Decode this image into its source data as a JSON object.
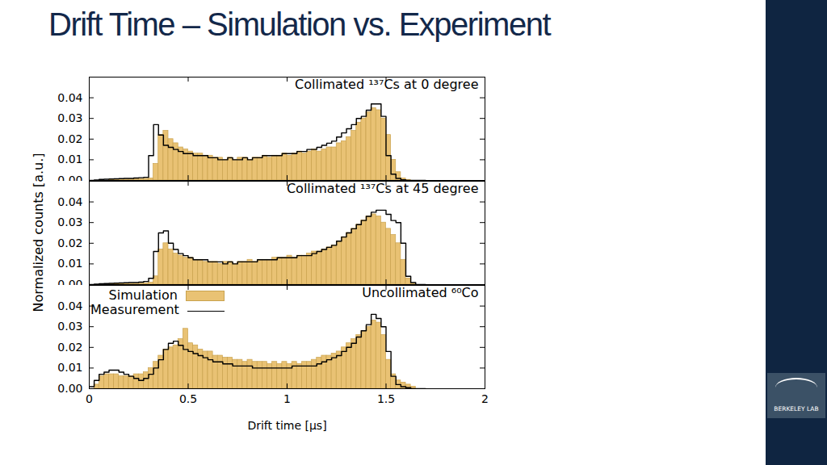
{
  "title": "Drift Time – Simulation vs. Experiment",
  "logo": "BERKELEY LAB",
  "chart_data": [
    {
      "type": "histogram",
      "title": "Collimated ¹³⁷Cs at 0 degree",
      "xlim": [
        0,
        2
      ],
      "xticks": [
        0,
        0.5,
        1,
        1.5,
        2
      ],
      "ylim": [
        0,
        0.05
      ],
      "yticks": [
        {
          "value": 0,
          "label": "0.00"
        },
        {
          "value": 0.01,
          "label": "0.01"
        },
        {
          "value": 0.02,
          "label": "0.02"
        },
        {
          "value": 0.03,
          "label": "0.03"
        },
        {
          "value": 0.04,
          "label": "0.04"
        }
      ],
      "tick_labels": "y",
      "bins": [
        0,
        0.025,
        0.05,
        0.075,
        0.1,
        0.125,
        0.15,
        0.175,
        0.2,
        0.225,
        0.25,
        0.275,
        0.3,
        0.325,
        0.35,
        0.375,
        0.4,
        0.425,
        0.45,
        0.475,
        0.5,
        0.525,
        0.55,
        0.575,
        0.6,
        0.625,
        0.65,
        0.675,
        0.7,
        0.725,
        0.75,
        0.775,
        0.8,
        0.825,
        0.85,
        0.875,
        0.9,
        0.925,
        0.95,
        0.975,
        1,
        1.025,
        1.05,
        1.075,
        1.1,
        1.125,
        1.15,
        1.175,
        1.2,
        1.225,
        1.25,
        1.275,
        1.3,
        1.325,
        1.35,
        1.375,
        1.4,
        1.425,
        1.45,
        1.475,
        1.5,
        1.525,
        1.55,
        1.575,
        1.6,
        1.625,
        1.65,
        1.675,
        1.7
      ],
      "series": [
        {
          "name": "Simulation",
          "type": "bar",
          "color": "#e9c274",
          "values": [
            0,
            0,
            0,
            0,
            0.0003,
            0.0004,
            0.0005,
            0.0005,
            0.0006,
            0.0006,
            0.0007,
            0.0008,
            0.001,
            0.008,
            0.022,
            0.024,
            0.02,
            0.018,
            0.016,
            0.015,
            0.014,
            0.013,
            0.013,
            0.012,
            0.012,
            0.011,
            0.011,
            0.01,
            0.011,
            0.01,
            0.011,
            0.011,
            0.01,
            0.011,
            0.011,
            0.012,
            0.011,
            0.012,
            0.012,
            0.013,
            0.012,
            0.013,
            0.014,
            0.013,
            0.014,
            0.015,
            0.014,
            0.015,
            0.016,
            0.016,
            0.018,
            0.019,
            0.021,
            0.024,
            0.028,
            0.03,
            0.033,
            0.035,
            0.034,
            0.03,
            0.022,
            0.01,
            0.004,
            0.001,
            0.0003,
            0,
            0,
            0
          ]
        },
        {
          "name": "Measurement",
          "type": "line",
          "color": "#000000",
          "values": [
            0,
            0.0002,
            0.0005,
            0.0006,
            0.0007,
            0.0008,
            0.0009,
            0.001,
            0.001,
            0.0012,
            0.0013,
            0.0015,
            0.012,
            0.027,
            0.022,
            0.017,
            0.016,
            0.015,
            0.014,
            0.013,
            0.013,
            0.012,
            0.012,
            0.012,
            0.011,
            0.011,
            0.01,
            0.01,
            0.011,
            0.01,
            0.01,
            0.011,
            0.01,
            0.011,
            0.011,
            0.012,
            0.012,
            0.012,
            0.012,
            0.013,
            0.013,
            0.013,
            0.014,
            0.014,
            0.015,
            0.015,
            0.016,
            0.017,
            0.018,
            0.019,
            0.021,
            0.023,
            0.025,
            0.027,
            0.03,
            0.031,
            0.034,
            0.037,
            0.037,
            0.031,
            0.012,
            0.003,
            0.001,
            0.0003,
            0,
            0,
            0,
            0
          ]
        }
      ]
    },
    {
      "type": "histogram",
      "title": "Collimated ¹³⁷Cs at 45 degree",
      "ylabel": "Normalized counts [a.u.]",
      "xlim": [
        0,
        2
      ],
      "xticks": [
        0,
        0.5,
        1,
        1.5,
        2
      ],
      "ylim": [
        0,
        0.05
      ],
      "yticks": [
        {
          "value": 0,
          "label": "0.00"
        },
        {
          "value": 0.01,
          "label": "0.01"
        },
        {
          "value": 0.02,
          "label": "0.02"
        },
        {
          "value": 0.03,
          "label": "0.03"
        },
        {
          "value": 0.04,
          "label": "0.04"
        }
      ],
      "tick_labels": "y",
      "bins": [
        0,
        0.025,
        0.05,
        0.075,
        0.1,
        0.125,
        0.15,
        0.175,
        0.2,
        0.225,
        0.25,
        0.275,
        0.3,
        0.325,
        0.35,
        0.375,
        0.4,
        0.425,
        0.45,
        0.475,
        0.5,
        0.525,
        0.55,
        0.575,
        0.6,
        0.625,
        0.65,
        0.675,
        0.7,
        0.725,
        0.75,
        0.775,
        0.8,
        0.825,
        0.85,
        0.875,
        0.9,
        0.925,
        0.95,
        0.975,
        1,
        1.025,
        1.05,
        1.075,
        1.1,
        1.125,
        1.15,
        1.175,
        1.2,
        1.225,
        1.25,
        1.275,
        1.3,
        1.325,
        1.35,
        1.375,
        1.4,
        1.425,
        1.45,
        1.475,
        1.5,
        1.525,
        1.55,
        1.575,
        1.6,
        1.625,
        1.65,
        1.675,
        1.7
      ],
      "series": [
        {
          "name": "Simulation",
          "type": "bar",
          "color": "#e9c274",
          "values": [
            0,
            0,
            0,
            0,
            0.0002,
            0.0003,
            0.0003,
            0.0004,
            0.0004,
            0.0005,
            0.0005,
            0.0006,
            0.001,
            0.004,
            0.017,
            0.02,
            0.017,
            0.015,
            0.014,
            0.013,
            0.013,
            0.012,
            0.012,
            0.011,
            0.011,
            0.011,
            0.01,
            0.011,
            0.011,
            0.01,
            0.011,
            0.011,
            0.012,
            0.011,
            0.012,
            0.012,
            0.012,
            0.013,
            0.013,
            0.013,
            0.014,
            0.013,
            0.014,
            0.014,
            0.015,
            0.016,
            0.016,
            0.017,
            0.018,
            0.019,
            0.021,
            0.023,
            0.025,
            0.027,
            0.029,
            0.031,
            0.033,
            0.034,
            0.033,
            0.03,
            0.027,
            0.024,
            0.02,
            0.012,
            0.003,
            0.0005,
            0,
            0
          ]
        },
        {
          "name": "Measurement",
          "type": "line",
          "color": "#000000",
          "values": [
            0,
            0.0002,
            0.0004,
            0.0005,
            0.0006,
            0.0007,
            0.0008,
            0.0009,
            0.001,
            0.001,
            0.0012,
            0.0015,
            0.003,
            0.016,
            0.025,
            0.026,
            0.02,
            0.017,
            0.015,
            0.014,
            0.013,
            0.012,
            0.012,
            0.012,
            0.011,
            0.011,
            0.011,
            0.01,
            0.011,
            0.01,
            0.011,
            0.011,
            0.011,
            0.011,
            0.012,
            0.012,
            0.012,
            0.012,
            0.013,
            0.013,
            0.013,
            0.013,
            0.014,
            0.014,
            0.014,
            0.015,
            0.016,
            0.017,
            0.018,
            0.019,
            0.021,
            0.023,
            0.025,
            0.027,
            0.029,
            0.031,
            0.033,
            0.035,
            0.036,
            0.036,
            0.034,
            0.031,
            0.03,
            0.02,
            0.004,
            0.001,
            0,
            0
          ]
        }
      ]
    },
    {
      "type": "histogram",
      "title": "Uncollimated ⁶⁰Co",
      "xlabel": "Drift time [μs]",
      "xlim": [
        0,
        2
      ],
      "xticks": [
        0,
        0.5,
        1,
        1.5,
        2
      ],
      "ylim": [
        0,
        0.05
      ],
      "yticks": [
        {
          "value": 0,
          "label": "0.00"
        },
        {
          "value": 0.01,
          "label": "0.01"
        },
        {
          "value": 0.02,
          "label": "0.02"
        },
        {
          "value": 0.03,
          "label": "0.03"
        },
        {
          "value": 0.04,
          "label": "0.04"
        }
      ],
      "legend": "upper left",
      "bins": [
        0,
        0.025,
        0.05,
        0.075,
        0.1,
        0.125,
        0.15,
        0.175,
        0.2,
        0.225,
        0.25,
        0.275,
        0.3,
        0.325,
        0.35,
        0.375,
        0.4,
        0.425,
        0.45,
        0.475,
        0.5,
        0.525,
        0.55,
        0.575,
        0.6,
        0.625,
        0.65,
        0.675,
        0.7,
        0.725,
        0.75,
        0.775,
        0.8,
        0.825,
        0.85,
        0.875,
        0.9,
        0.925,
        0.95,
        0.975,
        1,
        1.025,
        1.05,
        1.075,
        1.1,
        1.125,
        1.15,
        1.175,
        1.2,
        1.225,
        1.25,
        1.275,
        1.3,
        1.325,
        1.35,
        1.375,
        1.4,
        1.425,
        1.45,
        1.475,
        1.5,
        1.525,
        1.55,
        1.575,
        1.6,
        1.625,
        1.65,
        1.675,
        1.7
      ],
      "series": [
        {
          "name": "Simulation",
          "type": "bar",
          "color": "#e9c274",
          "values": [
            0,
            0.002,
            0.006,
            0.007,
            0.007,
            0.007,
            0.006,
            0.006,
            0.006,
            0.007,
            0.007,
            0.008,
            0.01,
            0.013,
            0.016,
            0.019,
            0.02,
            0.021,
            0.024,
            0.029,
            0.022,
            0.021,
            0.019,
            0.018,
            0.018,
            0.016,
            0.016,
            0.015,
            0.015,
            0.014,
            0.014,
            0.013,
            0.014,
            0.013,
            0.013,
            0.013,
            0.012,
            0.013,
            0.012,
            0.013,
            0.012,
            0.013,
            0.012,
            0.013,
            0.013,
            0.014,
            0.015,
            0.016,
            0.016,
            0.017,
            0.018,
            0.02,
            0.022,
            0.024,
            0.026,
            0.028,
            0.03,
            0.033,
            0.032,
            0.026,
            0.014,
            0.007,
            0.004,
            0.003,
            0.002,
            0.001,
            0,
            0
          ]
        },
        {
          "name": "Measurement",
          "type": "line",
          "color": "#000000",
          "values": [
            0.001,
            0.004,
            0.007,
            0.008,
            0.009,
            0.009,
            0.008,
            0.007,
            0.006,
            0.005,
            0.004,
            0.005,
            0.007,
            0.01,
            0.014,
            0.019,
            0.022,
            0.023,
            0.021,
            0.019,
            0.018,
            0.017,
            0.016,
            0.015,
            0.014,
            0.013,
            0.013,
            0.012,
            0.012,
            0.011,
            0.011,
            0.011,
            0.011,
            0.01,
            0.01,
            0.01,
            0.01,
            0.01,
            0.01,
            0.01,
            0.01,
            0.011,
            0.011,
            0.011,
            0.011,
            0.011,
            0.012,
            0.013,
            0.014,
            0.015,
            0.016,
            0.018,
            0.02,
            0.022,
            0.025,
            0.028,
            0.031,
            0.036,
            0.034,
            0.03,
            0.018,
            0.006,
            0.002,
            0.001,
            0.0005,
            0,
            0,
            0
          ]
        }
      ]
    }
  ]
}
